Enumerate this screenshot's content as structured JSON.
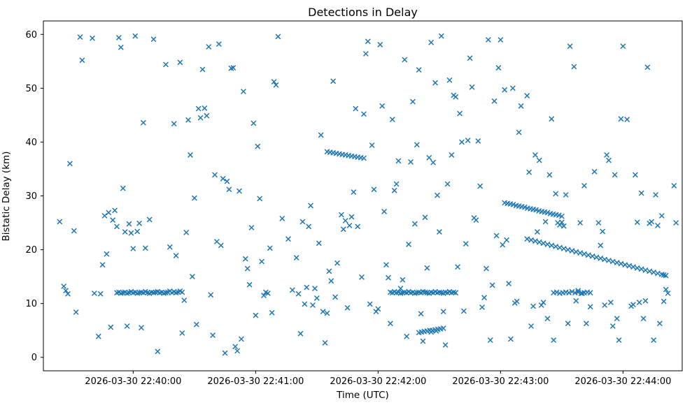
{
  "chart_data": {
    "type": "scatter",
    "title": "Detections in Delay",
    "xlabel": "Time (UTC)",
    "ylabel": "Bistatic Delay (km)",
    "marker": "x",
    "marker_color": "#1f77b4",
    "x_unit": "seconds after 2026-03-30 22:39:00 UTC",
    "xlim": [
      16,
      329
    ],
    "ylim": [
      -2.5,
      62.5
    ],
    "x_ticks": [
      60,
      120,
      180,
      240,
      300
    ],
    "x_tick_labels": [
      "2026-03-30 22:40:00",
      "2026-03-30 22:41:00",
      "2026-03-30 22:42:00",
      "2026-03-30 22:43:00",
      "2026-03-30 22:44:00"
    ],
    "y_ticks": [
      0,
      10,
      20,
      30,
      40,
      50,
      60
    ],
    "grid": false,
    "legend": false,
    "points": [
      [
        24,
        25.2
      ],
      [
        26,
        13.2
      ],
      [
        27,
        12.4
      ],
      [
        28,
        11.8
      ],
      [
        29,
        36.0
      ],
      [
        31,
        23.5
      ],
      [
        32,
        8.4
      ],
      [
        34,
        59.5
      ],
      [
        35,
        55.2
      ],
      [
        40,
        59.3
      ],
      [
        41,
        11.9
      ],
      [
        43,
        3.9
      ],
      [
        44,
        11.8
      ],
      [
        45,
        17.2
      ],
      [
        46,
        26.3
      ],
      [
        47,
        19.2
      ],
      [
        48,
        26.9
      ],
      [
        49,
        5.6
      ],
      [
        50,
        25.5
      ],
      [
        51,
        27.3
      ],
      [
        52,
        24.3
      ],
      [
        53,
        59.4
      ],
      [
        54,
        57.6
      ],
      [
        55,
        31.4
      ],
      [
        56,
        23.3
      ],
      [
        57,
        5.8
      ],
      [
        58,
        24.8
      ],
      [
        59,
        23.1
      ],
      [
        60,
        20.2
      ],
      [
        61,
        59.7
      ],
      [
        62,
        23.4
      ],
      [
        63,
        24.9
      ],
      [
        64,
        5.5
      ],
      [
        65,
        43.6
      ],
      [
        66,
        20.3
      ],
      [
        68,
        25.6
      ],
      [
        70,
        59.1
      ],
      [
        72,
        1.1
      ],
      [
        76,
        54.4
      ],
      [
        78,
        20.5
      ],
      [
        80,
        43.4
      ],
      [
        81,
        18.9
      ],
      [
        83,
        54.8
      ],
      [
        84,
        4.5
      ],
      [
        85,
        10.6
      ],
      [
        86,
        23.2
      ],
      [
        87,
        44.1
      ],
      [
        88,
        37.6
      ],
      [
        89,
        15.0
      ],
      [
        90,
        29.6
      ],
      [
        91,
        6.1
      ],
      [
        92,
        46.2
      ],
      [
        93,
        44.5
      ],
      [
        94,
        53.5
      ],
      [
        95,
        46.3
      ],
      [
        96,
        44.9
      ],
      [
        97,
        57.7
      ],
      [
        98,
        11.6
      ],
      [
        99,
        4.1
      ],
      [
        100,
        33.9
      ],
      [
        101,
        21.5
      ],
      [
        102,
        58.2
      ],
      [
        103,
        20.8
      ],
      [
        104,
        33.2
      ],
      [
        105,
        0.8
      ],
      [
        106,
        32.7
      ],
      [
        107,
        31.2
      ],
      [
        108,
        53.7
      ],
      [
        109,
        53.8
      ],
      [
        110,
        2.0
      ],
      [
        111,
        1.2
      ],
      [
        112,
        30.9
      ],
      [
        113,
        3.4
      ],
      [
        114,
        49.4
      ],
      [
        115,
        18.3
      ],
      [
        116,
        16.5
      ],
      [
        117,
        13.5
      ],
      [
        118,
        24.1
      ],
      [
        119,
        43.5
      ],
      [
        120,
        7.8
      ],
      [
        121,
        39.2
      ],
      [
        122,
        29.5
      ],
      [
        123,
        17.8
      ],
      [
        124,
        11.5
      ],
      [
        125,
        12.1
      ],
      [
        126,
        11.9
      ],
      [
        127,
        20.3
      ],
      [
        128,
        8.3
      ],
      [
        129,
        51.2
      ],
      [
        130,
        50.6
      ],
      [
        131,
        59.6
      ],
      [
        133,
        25.8
      ],
      [
        136,
        22.0
      ],
      [
        138,
        12.5
      ],
      [
        140,
        18.5
      ],
      [
        141,
        11.8
      ],
      [
        142,
        4.4
      ],
      [
        143,
        25.2
      ],
      [
        144,
        9.9
      ],
      [
        145,
        13.0
      ],
      [
        146,
        24.3
      ],
      [
        147,
        28.2
      ],
      [
        148,
        9.7
      ],
      [
        149,
        12.8
      ],
      [
        150,
        11.0
      ],
      [
        151,
        21.2
      ],
      [
        152,
        41.3
      ],
      [
        153,
        8.5
      ],
      [
        154,
        2.7
      ],
      [
        155,
        8.2
      ],
      [
        156,
        16.0
      ],
      [
        157,
        14.2
      ],
      [
        158,
        51.3
      ],
      [
        159,
        11.2
      ],
      [
        160,
        17.5
      ],
      [
        162,
        26.5
      ],
      [
        163,
        23.8
      ],
      [
        164,
        25.4
      ],
      [
        165,
        9.2
      ],
      [
        166,
        24.5
      ],
      [
        167,
        26.1
      ],
      [
        168,
        30.7
      ],
      [
        169,
        46.2
      ],
      [
        170,
        24.3
      ],
      [
        172,
        14.9
      ],
      [
        173,
        45.2
      ],
      [
        174,
        56.4
      ],
      [
        175,
        58.7
      ],
      [
        176,
        9.9
      ],
      [
        177,
        39.4
      ],
      [
        178,
        31.2
      ],
      [
        179,
        8.5
      ],
      [
        180,
        9.0
      ],
      [
        181,
        58.1
      ],
      [
        182,
        46.7
      ],
      [
        183,
        27.1
      ],
      [
        184,
        17.2
      ],
      [
        185,
        14.8
      ],
      [
        186,
        6.3
      ],
      [
        187,
        44.2
      ],
      [
        188,
        31.0
      ],
      [
        189,
        32.2
      ],
      [
        190,
        36.5
      ],
      [
        191,
        12.8
      ],
      [
        192,
        14.4
      ],
      [
        193,
        55.3
      ],
      [
        194,
        3.9
      ],
      [
        195,
        21.0
      ],
      [
        196,
        36.3
      ],
      [
        197,
        47.5
      ],
      [
        198,
        24.8
      ],
      [
        199,
        39.5
      ],
      [
        200,
        53.4
      ],
      [
        201,
        8.1
      ],
      [
        202,
        3.0
      ],
      [
        203,
        26.0
      ],
      [
        204,
        16.6
      ],
      [
        205,
        37.1
      ],
      [
        206,
        58.5
      ],
      [
        207,
        36.2
      ],
      [
        208,
        51.0
      ],
      [
        209,
        30.1
      ],
      [
        210,
        23.3
      ],
      [
        211,
        59.7
      ],
      [
        212,
        8.5
      ],
      [
        213,
        2.3
      ],
      [
        214,
        32.2
      ],
      [
        215,
        51.5
      ],
      [
        216,
        37.6
      ],
      [
        217,
        48.7
      ],
      [
        218,
        48.4
      ],
      [
        219,
        16.8
      ],
      [
        220,
        45.3
      ],
      [
        221,
        40.0
      ],
      [
        222,
        8.6
      ],
      [
        223,
        21.1
      ],
      [
        224,
        40.3
      ],
      [
        225,
        55.6
      ],
      [
        226,
        50.2
      ],
      [
        227,
        25.9
      ],
      [
        228,
        25.5
      ],
      [
        229,
        40.2
      ],
      [
        230,
        31.8
      ],
      [
        231,
        9.3
      ],
      [
        232,
        11.1
      ],
      [
        233,
        16.5
      ],
      [
        234,
        59.0
      ],
      [
        235,
        3.2
      ],
      [
        236,
        13.4
      ],
      [
        237,
        47.6
      ],
      [
        238,
        22.6
      ],
      [
        239,
        53.8
      ],
      [
        240,
        59.0
      ],
      [
        241,
        20.9
      ],
      [
        242,
        49.7
      ],
      [
        243,
        21.8
      ],
      [
        244,
        13.7
      ],
      [
        245,
        3.4
      ],
      [
        246,
        50.0
      ],
      [
        247,
        10.1
      ],
      [
        248,
        10.4
      ],
      [
        249,
        41.8
      ],
      [
        250,
        46.7
      ],
      [
        253,
        48.6
      ],
      [
        254,
        34.4
      ],
      [
        255,
        5.8
      ],
      [
        256,
        9.5
      ],
      [
        257,
        37.6
      ],
      [
        258,
        23.3
      ],
      [
        259,
        36.6
      ],
      [
        260,
        9.7
      ],
      [
        261,
        10.2
      ],
      [
        262,
        25.2
      ],
      [
        263,
        7.2
      ],
      [
        264,
        33.9
      ],
      [
        265,
        44.3
      ],
      [
        266,
        3.2
      ],
      [
        267,
        30.4
      ],
      [
        268,
        25.0
      ],
      [
        269,
        24.6
      ],
      [
        270,
        25.1
      ],
      [
        271,
        24.4
      ],
      [
        272,
        30.2
      ],
      [
        273,
        6.3
      ],
      [
        274,
        57.8
      ],
      [
        276,
        54.0
      ],
      [
        277,
        10.5
      ],
      [
        278,
        12.4
      ],
      [
        279,
        25.0
      ],
      [
        280,
        11.9
      ],
      [
        281,
        31.9
      ],
      [
        282,
        6.3
      ],
      [
        284,
        9.4
      ],
      [
        286,
        34.5
      ],
      [
        288,
        25.0
      ],
      [
        289,
        20.8
      ],
      [
        290,
        23.4
      ],
      [
        291,
        9.7
      ],
      [
        292,
        37.6
      ],
      [
        293,
        36.6
      ],
      [
        294,
        10.2
      ],
      [
        295,
        5.8
      ],
      [
        296,
        33.9
      ],
      [
        297,
        7.2
      ],
      [
        298,
        3.2
      ],
      [
        299,
        44.3
      ],
      [
        300,
        57.8
      ],
      [
        302,
        44.2
      ],
      [
        304,
        9.5
      ],
      [
        305,
        9.8
      ],
      [
        306,
        33.9
      ],
      [
        307,
        25.1
      ],
      [
        308,
        10.2
      ],
      [
        309,
        30.5
      ],
      [
        310,
        7.2
      ],
      [
        311,
        10.5
      ],
      [
        312,
        53.9
      ],
      [
        313,
        24.9
      ],
      [
        314,
        25.2
      ],
      [
        315,
        3.2
      ],
      [
        316,
        30.2
      ],
      [
        317,
        24.5
      ],
      [
        318,
        6.3
      ],
      [
        319,
        26.3
      ],
      [
        320,
        10.4
      ],
      [
        321,
        12.6
      ],
      [
        322,
        11.9
      ],
      [
        325,
        31.9
      ],
      [
        326,
        25.0
      ],
      [
        52,
        12.0
      ],
      [
        53,
        12.1
      ],
      [
        54,
        11.9
      ],
      [
        55,
        12.0
      ],
      [
        56,
        12.1
      ],
      [
        57,
        11.9
      ],
      [
        58,
        12.0
      ],
      [
        59,
        12.2
      ],
      [
        60,
        12.0
      ],
      [
        61,
        12.1
      ],
      [
        62,
        11.9
      ],
      [
        63,
        12.0
      ],
      [
        64,
        12.1
      ],
      [
        65,
        12.0
      ],
      [
        66,
        12.2
      ],
      [
        67,
        12.0
      ],
      [
        68,
        11.9
      ],
      [
        69,
        12.1
      ],
      [
        70,
        12.0
      ],
      [
        71,
        12.1
      ],
      [
        72,
        12.2
      ],
      [
        73,
        12.0
      ],
      [
        74,
        12.1
      ],
      [
        75,
        11.9
      ],
      [
        76,
        12.0
      ],
      [
        77,
        12.1
      ],
      [
        78,
        12.3
      ],
      [
        79,
        12.0
      ],
      [
        80,
        12.2
      ],
      [
        81,
        12.0
      ],
      [
        82,
        12.1
      ],
      [
        83,
        12.3
      ],
      [
        84,
        12.1
      ],
      [
        186,
        12.1
      ],
      [
        187,
        12.0
      ],
      [
        188,
        12.2
      ],
      [
        189,
        12.0
      ],
      [
        190,
        12.1
      ],
      [
        191,
        11.9
      ],
      [
        192,
        12.0
      ],
      [
        193,
        12.1
      ],
      [
        194,
        12.0
      ],
      [
        195,
        12.2
      ],
      [
        196,
        12.0
      ],
      [
        197,
        12.1
      ],
      [
        198,
        11.9
      ],
      [
        199,
        12.0
      ],
      [
        200,
        12.1
      ],
      [
        201,
        12.0
      ],
      [
        202,
        12.2
      ],
      [
        203,
        12.1
      ],
      [
        204,
        12.0
      ],
      [
        205,
        11.9
      ],
      [
        206,
        12.1
      ],
      [
        207,
        12.0
      ],
      [
        208,
        12.2
      ],
      [
        209,
        12.0
      ],
      [
        210,
        12.1
      ],
      [
        211,
        12.0
      ],
      [
        212,
        11.9
      ],
      [
        213,
        12.1
      ],
      [
        214,
        12.0
      ],
      [
        215,
        12.2
      ],
      [
        216,
        12.0
      ],
      [
        217,
        12.1
      ],
      [
        218,
        12.0
      ],
      [
        266,
        12.0
      ],
      [
        267.5,
        12.1
      ],
      [
        269,
        11.9
      ],
      [
        270.5,
        12.0
      ],
      [
        272,
        12.1
      ],
      [
        273.5,
        12.0
      ],
      [
        275,
        12.2
      ],
      [
        276.5,
        12.0
      ],
      [
        278,
        12.1
      ],
      [
        279.5,
        11.9
      ],
      [
        281,
        12.0
      ],
      [
        282.5,
        12.1
      ],
      [
        284,
        12.0
      ],
      [
        242,
        28.7
      ],
      [
        243.4,
        28.6
      ],
      [
        244.8,
        28.5
      ],
      [
        246.2,
        28.4
      ],
      [
        247.6,
        28.2
      ],
      [
        249,
        28.1
      ],
      [
        250.4,
        28.0
      ],
      [
        251.8,
        27.9
      ],
      [
        253.2,
        27.7
      ],
      [
        254.6,
        27.6
      ],
      [
        256,
        27.5
      ],
      [
        257.4,
        27.4
      ],
      [
        258.8,
        27.2
      ],
      [
        260.2,
        27.1
      ],
      [
        261.6,
        27.0
      ],
      [
        263,
        26.9
      ],
      [
        264.4,
        26.7
      ],
      [
        265.8,
        26.6
      ],
      [
        267.2,
        26.5
      ],
      [
        268.6,
        26.4
      ],
      [
        270,
        26.2
      ],
      [
        253,
        22.0
      ],
      [
        255,
        21.8
      ],
      [
        257,
        21.6
      ],
      [
        259,
        21.4
      ],
      [
        261,
        21.2
      ],
      [
        263,
        21.0
      ],
      [
        265,
        20.8
      ],
      [
        267,
        20.6
      ],
      [
        269,
        20.4
      ],
      [
        271,
        20.2
      ],
      [
        273,
        20.0
      ],
      [
        275,
        19.8
      ],
      [
        277,
        19.6
      ],
      [
        279,
        19.4
      ],
      [
        281,
        19.2
      ],
      [
        283,
        19.0
      ],
      [
        285,
        18.8
      ],
      [
        287,
        18.6
      ],
      [
        289,
        18.4
      ],
      [
        291,
        18.2
      ],
      [
        293,
        18.0
      ],
      [
        295,
        17.8
      ],
      [
        297,
        17.6
      ],
      [
        299,
        17.4
      ],
      [
        301,
        17.2
      ],
      [
        303,
        17.0
      ],
      [
        305,
        16.8
      ],
      [
        307,
        16.6
      ],
      [
        309,
        16.4
      ],
      [
        311,
        16.2
      ],
      [
        313,
        16.0
      ],
      [
        315,
        15.8
      ],
      [
        317,
        15.6
      ],
      [
        319,
        15.4
      ],
      [
        320,
        15.3
      ],
      [
        321,
        15.2
      ],
      [
        155,
        38.2
      ],
      [
        156.5,
        38.1
      ],
      [
        158,
        38.0
      ],
      [
        159.5,
        37.9
      ],
      [
        161,
        37.8
      ],
      [
        162.5,
        37.7
      ],
      [
        164,
        37.6
      ],
      [
        165.5,
        37.5
      ],
      [
        167,
        37.4
      ],
      [
        168.5,
        37.3
      ],
      [
        170,
        37.2
      ],
      [
        171.5,
        37.1
      ],
      [
        173,
        37.0
      ],
      [
        200,
        4.6
      ],
      [
        201.3,
        4.7
      ],
      [
        202.6,
        4.8
      ],
      [
        204,
        4.9
      ],
      [
        205.3,
        5.0
      ],
      [
        206.6,
        5.0
      ],
      [
        208,
        5.1
      ],
      [
        209.3,
        5.2
      ],
      [
        210.6,
        5.3
      ],
      [
        212,
        5.4
      ],
      [
        206,
        4.7
      ],
      [
        208.5,
        4.9
      ]
    ]
  }
}
